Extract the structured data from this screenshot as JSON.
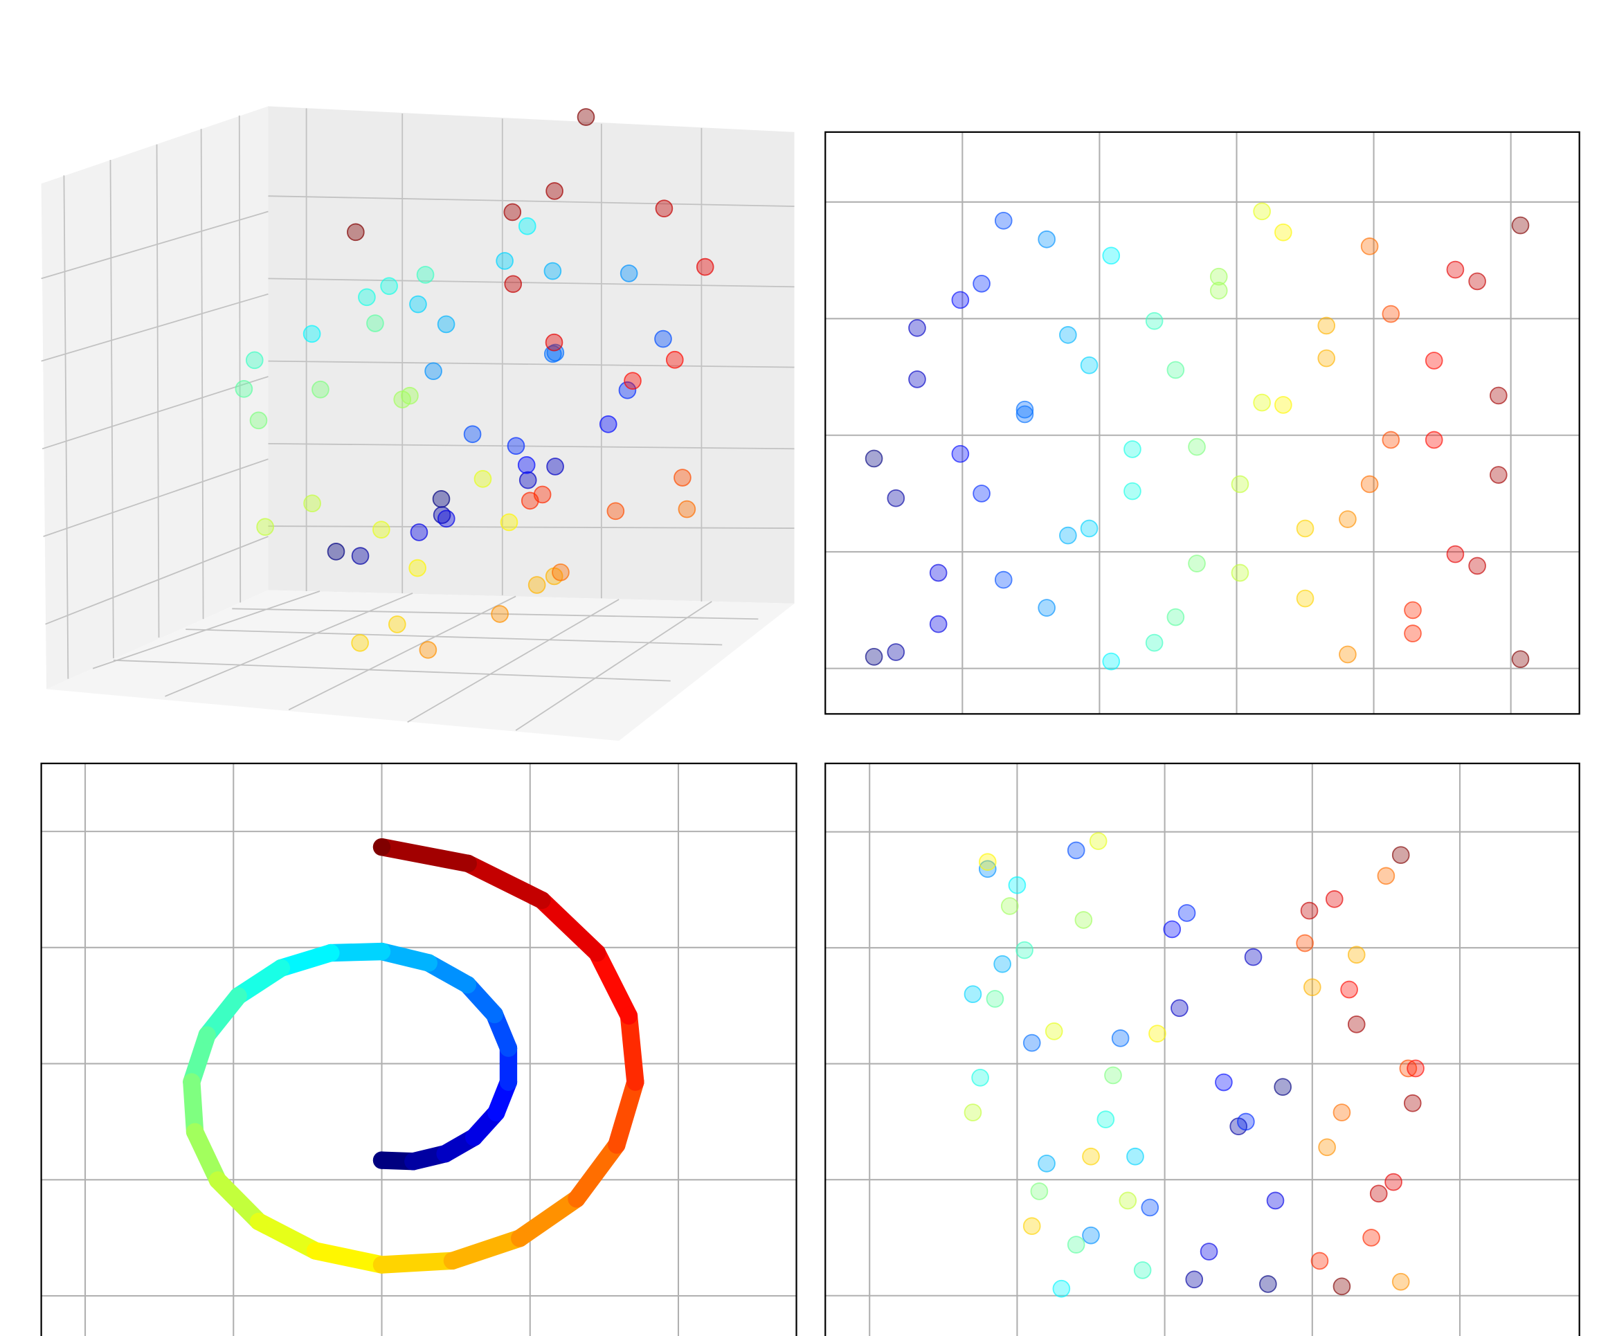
{
  "chart_data": [
    {
      "type": "scatter3d",
      "colormap": "jet",
      "clim": [
        4.71,
        14.14
      ],
      "x": [
        0,
        0,
        1.06,
        1.06,
        2.14,
        2.14,
        3.11,
        3.11,
        3.86,
        3.86,
        4.27,
        4.27,
        4.27,
        4.27,
        3.8,
        3.8,
        2.89,
        2.89,
        1.58,
        1.58,
        0,
        0,
        -1.72,
        -1.72,
        -3.39,
        -3.39,
        -4.84,
        -4.84,
        -5.89,
        -5.89,
        -6.41,
        -6.41,
        -6.3,
        -6.3,
        -5.53,
        -5.53,
        -4.15,
        -4.15,
        -2.24,
        -2.24,
        0,
        0,
        2.38,
        2.38,
        4.65,
        4.65,
        6.57,
        6.57,
        7.92,
        7.92,
        8.55,
        8.55,
        8.33,
        8.33,
        7.26,
        7.26,
        5.4,
        5.4,
        2.91,
        2.91,
        0,
        0
      ],
      "y": [
        0.5,
        9,
        7.3,
        0.7,
        14.6,
        12.4,
        1.9,
        4.1,
        9.2,
        15.8,
        16.5,
        7.5,
        3.8,
        19.2,
        11.1,
        10.9,
        18.4,
        2.6,
        5.7,
        14.3,
        13,
        6,
        0.3,
        17.7,
        7.6,
        9.4,
        14.9,
        1.1,
        2.2,
        12.8,
        9.5,
        4.5,
        16.8,
        16.2,
        4.1,
        7.9,
        11.4,
        19.6,
        18.7,
        11.3,
        6,
        3,
        13.3,
        14.7,
        0.6,
        6.4,
        7.9,
        18.1,
        15.2,
        9.8,
        2.5,
        1.5,
        9.8,
        13.2,
        17.1,
        4.9,
        4.4,
        16.6,
        11.7,
        8.3,
        19,
        0.4
      ],
      "z": [
        -4.16,
        -4.16,
        -4.21,
        -4.21,
        -3.88,
        -3.88,
        -3.17,
        -3.17,
        -2.11,
        -2.11,
        -0.79,
        -0.79,
        0.67,
        0.67,
        2.12,
        2.12,
        3.4,
        3.4,
        4.34,
        4.34,
        4.83,
        4.83,
        4.77,
        4.77,
        4.12,
        4.12,
        2.91,
        2.91,
        1.23,
        1.23,
        -0.79,
        -0.79,
        -2.94,
        -2.94,
        -5.02,
        -5.02,
        -6.8,
        -6.8,
        -8.06,
        -8.06,
        -8.66,
        -8.66,
        -8.49,
        -8.49,
        -7.52,
        -7.52,
        -5.82,
        -5.82,
        -3.5,
        -3.5,
        -0.79,
        -0.79,
        2.06,
        2.06,
        4.77,
        4.77,
        7.04,
        7.04,
        8.62,
        8.62,
        9.33,
        9.33
      ],
      "color_values": [
        4.71,
        4.71,
        5.03,
        5.03,
        5.34,
        5.34,
        5.65,
        5.65,
        5.97,
        5.97,
        6.28,
        6.28,
        6.6,
        6.6,
        6.91,
        6.91,
        7.23,
        7.23,
        7.54,
        7.54,
        7.85,
        7.85,
        8.17,
        8.17,
        8.48,
        8.48,
        8.8,
        8.8,
        9.11,
        9.11,
        9.42,
        9.42,
        9.74,
        9.74,
        10.05,
        10.05,
        10.37,
        10.37,
        10.68,
        10.68,
        11,
        11,
        11.31,
        11.31,
        11.62,
        11.62,
        11.94,
        11.94,
        12.25,
        12.25,
        12.57,
        12.57,
        12.88,
        12.88,
        13.19,
        13.19,
        13.51,
        13.51,
        13.82,
        13.82,
        14.14,
        14.14
      ]
    },
    {
      "type": "scatter",
      "colormap": "jet",
      "clim": [
        4.71,
        14.14
      ],
      "grid": true,
      "xlim": [
        4,
        15
      ],
      "ylim": [
        -1.95,
        23
      ],
      "xticks": [
        6,
        8,
        10,
        12,
        14
      ],
      "yticks": [
        0,
        5,
        10,
        15,
        20
      ],
      "x": [
        4.71,
        4.71,
        5.03,
        5.03,
        5.34,
        5.34,
        5.65,
        5.65,
        5.97,
        5.97,
        6.28,
        6.28,
        6.6,
        6.6,
        6.91,
        6.91,
        7.23,
        7.23,
        7.54,
        7.54,
        7.85,
        7.85,
        8.17,
        8.17,
        8.48,
        8.48,
        8.8,
        8.8,
        9.11,
        9.11,
        9.42,
        9.42,
        9.74,
        9.74,
        10.05,
        10.05,
        10.37,
        10.37,
        10.68,
        10.68,
        11,
        11,
        11.31,
        11.31,
        11.62,
        11.62,
        11.94,
        11.94,
        12.25,
        12.25,
        12.57,
        12.57,
        12.88,
        12.88,
        13.19,
        13.19,
        13.51,
        13.51,
        13.82,
        13.82,
        14.14,
        14.14
      ],
      "y": [
        0.5,
        9,
        7.3,
        0.7,
        14.6,
        12.4,
        1.9,
        4.1,
        9.2,
        15.8,
        16.5,
        7.5,
        3.8,
        19.2,
        11.1,
        10.9,
        18.4,
        2.6,
        5.7,
        14.3,
        13,
        6,
        0.3,
        17.7,
        7.6,
        9.4,
        14.9,
        1.1,
        2.2,
        12.8,
        9.5,
        4.5,
        16.8,
        16.2,
        4.1,
        7.9,
        11.4,
        19.6,
        18.7,
        11.3,
        6,
        3,
        13.3,
        14.7,
        0.6,
        6.4,
        7.9,
        18.1,
        15.2,
        9.8,
        2.5,
        1.5,
        9.8,
        13.2,
        17.1,
        4.9,
        4.4,
        16.6,
        11.7,
        8.3,
        19,
        0.4
      ],
      "color_values": [
        4.71,
        4.71,
        5.03,
        5.03,
        5.34,
        5.34,
        5.65,
        5.65,
        5.97,
        5.97,
        6.28,
        6.28,
        6.6,
        6.6,
        6.91,
        6.91,
        7.23,
        7.23,
        7.54,
        7.54,
        7.85,
        7.85,
        8.17,
        8.17,
        8.48,
        8.48,
        8.8,
        8.8,
        9.11,
        9.11,
        9.42,
        9.42,
        9.74,
        9.74,
        10.05,
        10.05,
        10.37,
        10.37,
        10.68,
        10.68,
        11,
        11,
        11.31,
        11.31,
        11.62,
        11.62,
        11.94,
        11.94,
        12.25,
        12.25,
        12.57,
        12.57,
        12.88,
        12.88,
        13.19,
        13.19,
        13.51,
        13.51,
        13.82,
        13.82,
        14.14,
        14.14
      ]
    },
    {
      "type": "line",
      "colormap": "jet",
      "clim": [
        4.71,
        14.14
      ],
      "grid": true,
      "xlim": [
        -11.48,
        13.98
      ],
      "ylim": [
        -12.04,
        12.93
      ],
      "xticks": [
        -10,
        -5,
        0,
        5,
        10
      ],
      "yticks": [
        -10,
        -5,
        0,
        5,
        10
      ],
      "x": [
        0,
        1.06,
        2.14,
        3.11,
        3.86,
        4.27,
        4.27,
        3.8,
        2.89,
        1.58,
        0,
        -1.72,
        -3.39,
        -4.84,
        -5.89,
        -6.41,
        -6.3,
        -5.53,
        -4.15,
        -2.24,
        0,
        2.38,
        4.65,
        6.57,
        7.92,
        8.55,
        8.33,
        7.26,
        5.4,
        2.91,
        0
      ],
      "y": [
        -4.16,
        -4.21,
        -3.88,
        -3.17,
        -2.11,
        -0.79,
        0.67,
        2.12,
        3.4,
        4.34,
        4.83,
        4.77,
        4.12,
        2.91,
        1.23,
        -0.79,
        -2.94,
        -5.02,
        -6.8,
        -8.06,
        -8.66,
        -8.49,
        -7.52,
        -5.82,
        -3.5,
        -0.79,
        2.06,
        4.77,
        7.04,
        8.62,
        9.33
      ],
      "color_values": [
        4.71,
        5.03,
        5.34,
        5.65,
        5.97,
        6.28,
        6.6,
        6.91,
        7.23,
        7.54,
        7.85,
        8.17,
        8.48,
        8.8,
        9.11,
        9.42,
        9.74,
        10.05,
        10.37,
        10.68,
        11,
        11.31,
        11.62,
        11.94,
        12.25,
        12.57,
        12.88,
        13.19,
        13.51,
        13.82,
        14.14
      ]
    },
    {
      "type": "scatter",
      "colormap": "jet",
      "clim": [
        4.71,
        14.14
      ],
      "grid": true,
      "xlim": [
        -2.3,
        2.81
      ],
      "ylim": [
        -2.41,
        2.59
      ],
      "xticks": [
        -2,
        -1,
        0,
        1,
        2
      ],
      "yticks": [
        -2,
        -1,
        0,
        1,
        2
      ],
      "x": [
        0.7,
        0.8,
        0.5,
        0.2,
        0.6,
        0.1,
        0.3,
        0.75,
        0.4,
        0.05,
        0.15,
        0.55,
        -0.1,
        -0.6,
        -0.3,
        -0.9,
        -1.2,
        -0.5,
        -0.8,
        -1.1,
        -1.3,
        -0.2,
        -0.7,
        -1,
        -0.4,
        -1.25,
        -0.95,
        -0.15,
        -0.6,
        -1.15,
        -0.35,
        -0.85,
        -1.05,
        -0.55,
        -0.25,
        -1.3,
        -0.75,
        -0.45,
        -1.2,
        -0.05,
        -0.5,
        -0.9,
        1,
        1.3,
        1.6,
        1.1,
        1.2,
        1.5,
        0.95,
        1.65,
        1.4,
        1.05,
        1.7,
        1.25,
        1.15,
        1.55,
        1.45,
        0.98,
        1.3,
        1.68,
        1.6,
        1.2
      ],
      "y": [
        -1.9,
        -0.2,
        -0.54,
        -1.86,
        0.92,
        0.48,
        -1.62,
        -1.18,
        -0.16,
        1.16,
        1.3,
        -0.5,
        -1.24,
        1.84,
        0.22,
        0.18,
        1.68,
        -1.48,
        -0.86,
        0.86,
        0.6,
        -0.8,
        -1.94,
        1.54,
        -0.48,
        -0.12,
        0.98,
        -1.78,
        -1.56,
        0.56,
        -0.1,
        -1.1,
        1.36,
        1.24,
        -1.18,
        -0.42,
        0.28,
        1.92,
        1.74,
        0.26,
        -0.8,
        -1.4,
        0.66,
        0.94,
        -1.88,
        -0.72,
        -0.42,
        1.62,
        1.04,
        -0.04,
        -1.5,
        -1.7,
        -0.04,
        0.64,
        1.42,
        -1.02,
        -1.12,
        1.32,
        0.34,
        -0.34,
        1.8,
        -1.92
      ],
      "color_values": [
        4.71,
        4.71,
        5.03,
        5.03,
        5.34,
        5.34,
        5.65,
        5.65,
        5.97,
        5.97,
        6.28,
        6.28,
        6.6,
        6.6,
        6.91,
        6.91,
        7.23,
        7.23,
        7.54,
        7.54,
        7.85,
        7.85,
        8.17,
        8.17,
        8.48,
        8.48,
        8.8,
        8.8,
        9.11,
        9.11,
        9.42,
        9.42,
        9.74,
        9.74,
        10.05,
        10.05,
        10.37,
        10.37,
        10.68,
        10.68,
        11,
        11,
        11.31,
        11.31,
        11.62,
        11.62,
        11.94,
        11.94,
        12.25,
        12.25,
        12.57,
        12.57,
        12.88,
        12.88,
        13.19,
        13.19,
        13.51,
        13.51,
        13.82,
        13.82,
        14.14,
        14.14
      ]
    }
  ]
}
